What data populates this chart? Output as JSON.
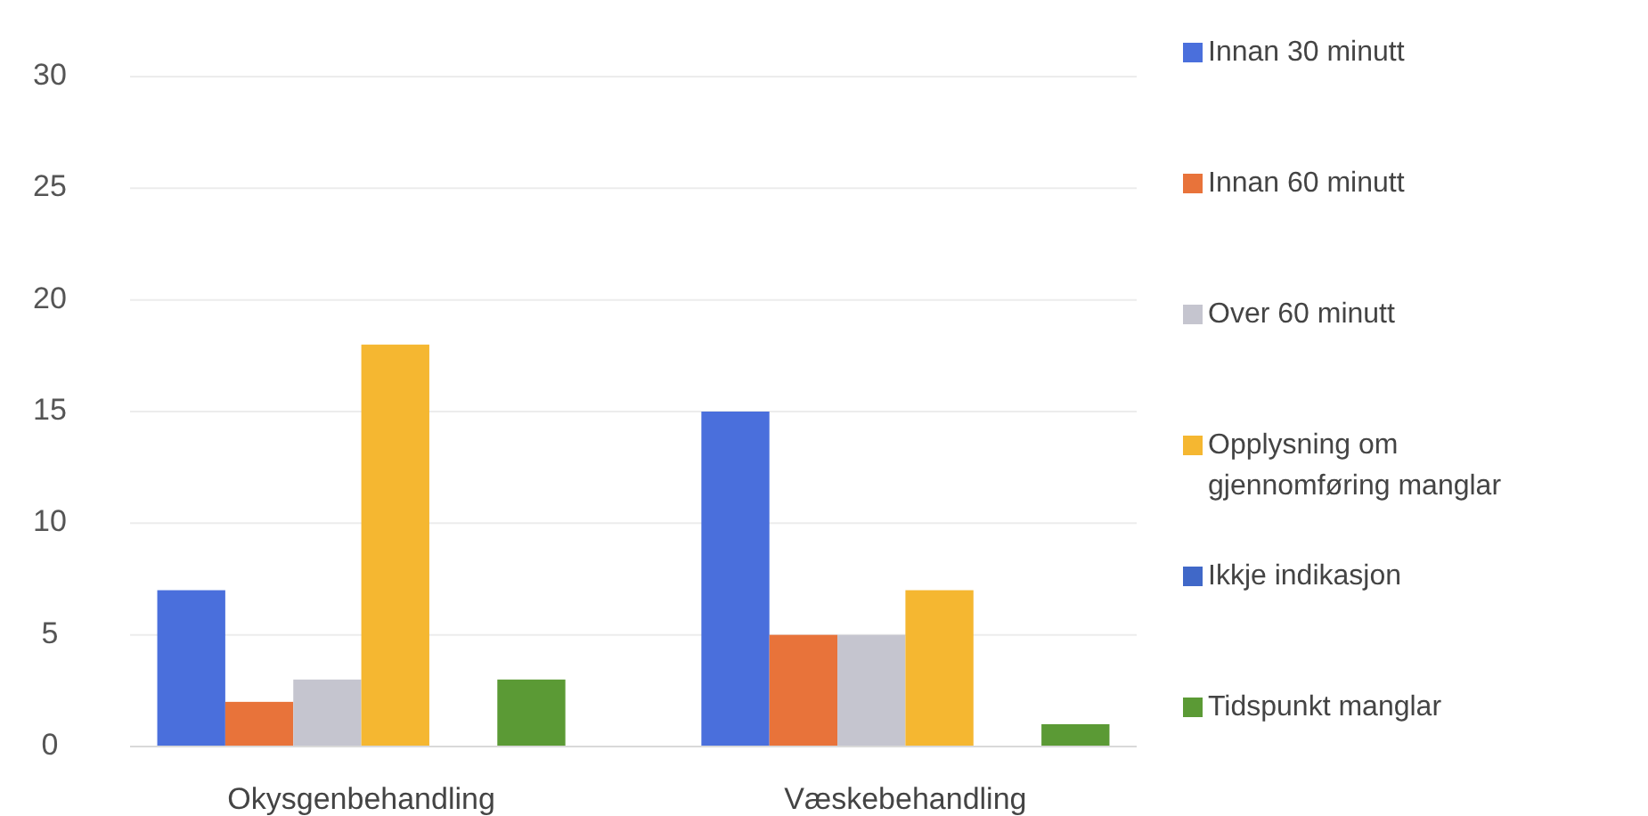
{
  "chart_data": {
    "type": "bar",
    "categories": [
      "Okysgenbehandling",
      "Væskebehandling"
    ],
    "series": [
      {
        "name": "Innan 30 minutt",
        "color": "#4a6fdc",
        "values": [
          7,
          15
        ]
      },
      {
        "name": "Innan 60 minutt",
        "color": "#e8733a",
        "values": [
          2,
          5
        ]
      },
      {
        "name": "Over 60 minutt",
        "color": "#c5c5cf",
        "values": [
          3,
          5
        ]
      },
      {
        "name": "Opplysning om gjennomføring manglar",
        "color": "#f5b731",
        "values": [
          18,
          7
        ]
      },
      {
        "name": "Ikkje indikasjon",
        "color": "#4068c8",
        "values": [
          0,
          0
        ]
      },
      {
        "name": "Tidspunkt manglar",
        "color": "#5b9a35",
        "values": [
          3,
          1
        ]
      }
    ],
    "ylim": [
      0,
      30
    ],
    "yticks": [
      0,
      5,
      10,
      15,
      20,
      25,
      30
    ],
    "grid": "y",
    "legend": "right"
  }
}
